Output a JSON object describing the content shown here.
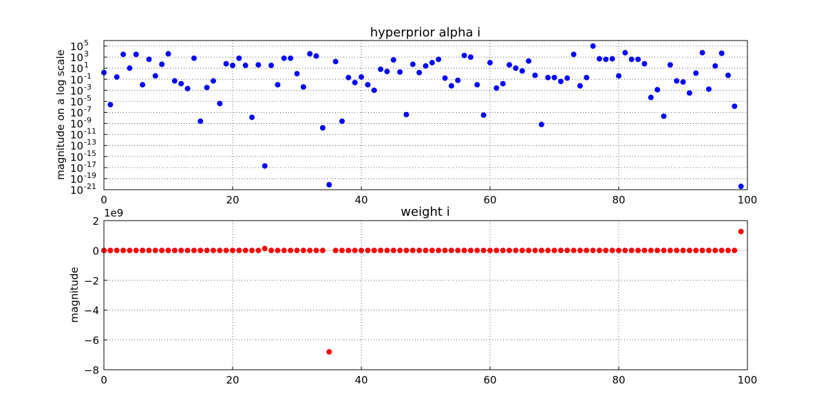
{
  "chart_data": [
    {
      "type": "scatter",
      "title": "hyperprior alpha i",
      "xlabel": "",
      "ylabel": "magnitude on a log scale",
      "xlim": [
        0,
        100
      ],
      "ylim_log10": [
        -21,
        6
      ],
      "y_scale": "log",
      "grid": true,
      "marker_color": "#0000ff",
      "x_ticks": [
        "0",
        "20",
        "40",
        "60",
        "80",
        "100"
      ],
      "y_tick_exponents": [
        "-21",
        "-19",
        "-17",
        "-15",
        "-13",
        "-11",
        "-9",
        "-7",
        "-5",
        "-3",
        "-1",
        "1",
        "3",
        "5"
      ],
      "y_tick_base": "10",
      "log10_values": [
        0.2,
        -5.6,
        -0.6,
        3.5,
        1.0,
        3.5,
        -2.0,
        2.6,
        -0.4,
        1.7,
        3.6,
        -1.3,
        -1.8,
        -2.7,
        2.8,
        -8.6,
        -2.5,
        -1.3,
        -5.4,
        1.8,
        1.5,
        2.8,
        1.5,
        -7.9,
        1.6,
        -16.7,
        1.5,
        -2.0,
        2.8,
        2.8,
        0.0,
        -2.4,
        3.6,
        3.2,
        -9.8,
        -20.1,
        2.2,
        -8.6,
        -0.7,
        -1.6,
        -0.6,
        -2.0,
        -3.0,
        0.8,
        0.4,
        2.5,
        0.3,
        -7.4,
        1.7,
        0.2,
        1.4,
        2.0,
        2.6,
        -0.8,
        -2.2,
        -1.2,
        3.3,
        3.0,
        -2.0,
        -7.5,
        2.0,
        -2.6,
        -1.8,
        1.6,
        1.0,
        0.5,
        2.3,
        -0.3,
        -9.2,
        -0.7,
        -0.7,
        -1.4,
        -0.8,
        3.5,
        -2.2,
        -0.7,
        5.0,
        2.7,
        2.6,
        2.7,
        -0.4,
        3.8,
        2.6,
        2.6,
        1.8,
        -4.3,
        -2.9,
        -7.7,
        1.6,
        -1.3,
        -1.5,
        -3.5,
        0.1,
        3.8,
        -2.8,
        1.4,
        3.7,
        -0.3,
        -5.9,
        -20.4
      ]
    },
    {
      "type": "scatter",
      "title": "weight i",
      "xlabel": "",
      "ylabel": "magnitude",
      "xlim": [
        0,
        100
      ],
      "ylim": [
        -8,
        2
      ],
      "y_offset_label": "1e9",
      "grid": true,
      "marker_color": "#ff0000",
      "x_ticks": [
        "0",
        "20",
        "40",
        "60",
        "80",
        "100"
      ],
      "y_ticks": [
        "−8",
        "−6",
        "−4",
        "−2",
        "0",
        "2"
      ],
      "values_1e9": [
        0,
        0,
        0,
        0,
        0,
        0,
        0,
        0,
        0,
        0,
        0,
        0,
        0,
        0,
        0,
        0,
        0,
        0,
        0,
        0,
        0,
        0,
        0,
        0,
        0,
        0.13,
        0,
        0,
        0,
        0,
        0,
        0,
        0,
        0,
        0,
        -6.8,
        0,
        0,
        0,
        0,
        0,
        0,
        0,
        0,
        0,
        0,
        0,
        0,
        0,
        0,
        0,
        0,
        0,
        0,
        0,
        0,
        0,
        0,
        0,
        0,
        0,
        0,
        0,
        0,
        0,
        0,
        0,
        0,
        0,
        0,
        0,
        0,
        0,
        0,
        0,
        0,
        0,
        0,
        0,
        0,
        0,
        0,
        0,
        0,
        0,
        0,
        0,
        0,
        0,
        0,
        0,
        0,
        0,
        0,
        0,
        0,
        0,
        0,
        0,
        1.27
      ]
    }
  ]
}
